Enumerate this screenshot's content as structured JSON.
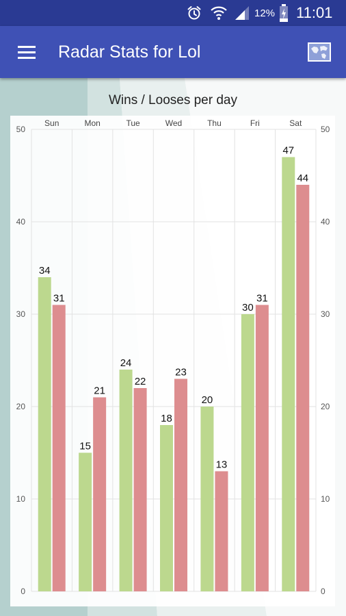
{
  "status_bar": {
    "battery_percent": "12%",
    "time": "11:01",
    "icons": [
      "alarm-icon",
      "wifi-icon",
      "signal-icon",
      "battery-charging-icon"
    ]
  },
  "app_bar": {
    "title": "Radar Stats for Lol",
    "menu_icon": "hamburger-menu-icon",
    "action_icon": "world-map-icon"
  },
  "colors": {
    "status_bar": "#2a3a93",
    "app_bar": "#3f51b5",
    "wins": "#bcd88e",
    "looses": "#dd8d8f"
  },
  "chart_data": {
    "type": "bar",
    "title": "Wins / Looses per day",
    "categories": [
      "Sun",
      "Mon",
      "Tue",
      "Wed",
      "Thu",
      "Fri",
      "Sat"
    ],
    "series": [
      {
        "values": [
          34,
          15,
          24,
          18,
          20,
          30,
          47
        ],
        "color": "#bcd88e"
      },
      {
        "values": [
          31,
          21,
          22,
          23,
          13,
          31,
          44
        ],
        "color": "#dd8d8f"
      }
    ],
    "ylim": [
      0,
      50
    ],
    "yticks": [
      0,
      10,
      20,
      30,
      40,
      50
    ],
    "y_axis_left": true,
    "y_axis_right": true,
    "x_labels_position": "top",
    "grid": true,
    "legend": "none"
  }
}
